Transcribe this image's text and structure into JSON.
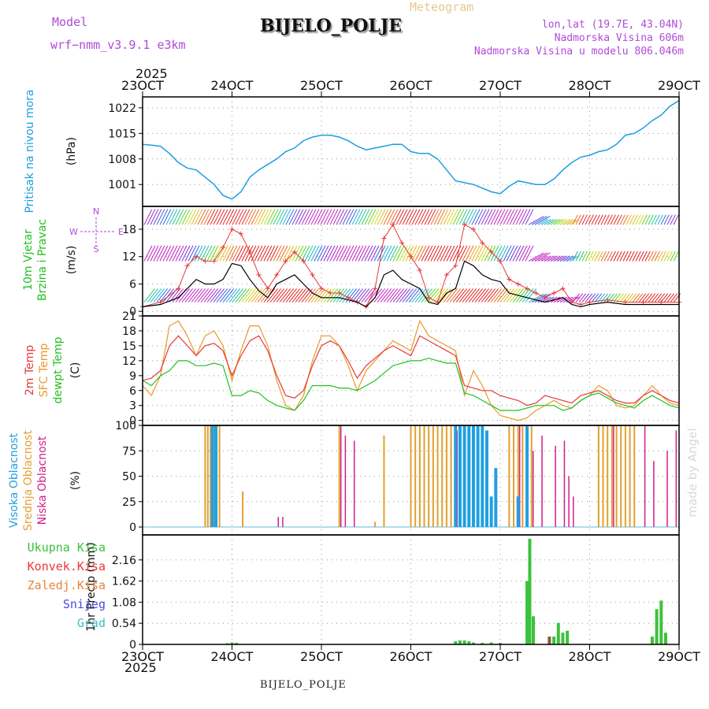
{
  "header": {
    "model_label": "Model",
    "model_name": "wrf−nmm_v3.9.1  e3km",
    "title": "BIJELO_POLJE",
    "meteogram": "Meteogram",
    "coords": "lon,lat (19.7E, 43.04N)",
    "altitude": "Nadmorska Visina 606m",
    "model_altitude": "Nadmorska Visina u modelu 806.046m"
  },
  "footer": {
    "station": "BIJELO_POLJE",
    "watermark": "made by Angel"
  },
  "colors": {
    "pressure": "#1a9fe0",
    "temp2m": "#e83838",
    "sfc": "#e89a28",
    "dewpt": "#22c022",
    "mid_cloud": "#e0a030",
    "low_cloud": "#d0208a",
    "high_cloud": "#20a0e0",
    "wind_speed": "#000000",
    "gust": "#e83838",
    "precip": "#3cc23c",
    "header_text": "#b04ad8"
  },
  "chart_data": {
    "type": "meteogram",
    "x_ticks": [
      "23OCT",
      "24OCT",
      "25OCT",
      "26OCT",
      "27OCT",
      "28OCT",
      "29OCT"
    ],
    "year_top": "2025",
    "year_bottom": "2025",
    "x_range_days": [
      0,
      6
    ],
    "panels": {
      "pressure": {
        "ylabel": "Pritisak na nivou mora",
        "units": "(hPa)",
        "ticks": [
          1001,
          1008,
          1015,
          1022
        ],
        "ylim": [
          995,
          1025
        ],
        "x": [
          0,
          0.1,
          0.2,
          0.3,
          0.4,
          0.5,
          0.6,
          0.7,
          0.8,
          0.9,
          1.0,
          1.1,
          1.2,
          1.3,
          1.4,
          1.5,
          1.6,
          1.7,
          1.8,
          1.9,
          2.0,
          2.1,
          2.2,
          2.3,
          2.4,
          2.5,
          2.6,
          2.7,
          2.8,
          2.9,
          3.0,
          3.1,
          3.2,
          3.3,
          3.4,
          3.5,
          3.6,
          3.7,
          3.8,
          3.9,
          4.0,
          4.1,
          4.2,
          4.3,
          4.4,
          4.5,
          4.6,
          4.7,
          4.8,
          4.9,
          5.0,
          5.1,
          5.2,
          5.3,
          5.4,
          5.5,
          5.6,
          5.7,
          5.8,
          5.9,
          6.0
        ],
        "values": [
          1012,
          1011.8,
          1011.5,
          1009.5,
          1007,
          1005.5,
          1005,
          1003,
          1001,
          998,
          997,
          999,
          1003,
          1005,
          1006.5,
          1008,
          1010,
          1011,
          1013,
          1014,
          1014.5,
          1014.5,
          1014,
          1013,
          1011.5,
          1010.5,
          1011,
          1011.5,
          1012,
          1012,
          1010,
          1009.5,
          1009.5,
          1008,
          1005,
          1002,
          1001.5,
          1001,
          1000,
          999,
          998.5,
          1000.5,
          1002,
          1001.5,
          1001,
          1001,
          1002.5,
          1005,
          1007,
          1008.5,
          1009,
          1010,
          1010.5,
          1012,
          1014.5,
          1015,
          1016.5,
          1018.5,
          1020,
          1022.5,
          1024
        ]
      },
      "wind": {
        "ylabel1": "10m Vjetar",
        "ylabel2": "Brzina i Pravac",
        "units": "(m/s)",
        "ticks": [
          0,
          6,
          12,
          18
        ],
        "ylim": [
          -1,
          23
        ],
        "compass": {
          "n": "N",
          "s": "S",
          "e": "E",
          "w": "W"
        },
        "x": [
          0,
          0.2,
          0.4,
          0.5,
          0.6,
          0.7,
          0.8,
          0.9,
          1.0,
          1.1,
          1.2,
          1.3,
          1.4,
          1.5,
          1.6,
          1.7,
          1.8,
          1.9,
          2.0,
          2.1,
          2.2,
          2.3,
          2.4,
          2.5,
          2.6,
          2.7,
          2.8,
          2.9,
          3.0,
          3.1,
          3.2,
          3.3,
          3.4,
          3.5,
          3.6,
          3.7,
          3.8,
          3.9,
          4.0,
          4.1,
          4.2,
          4.3,
          4.4,
          4.5,
          4.6,
          4.7,
          4.8,
          4.9,
          5.0,
          5.2,
          5.4,
          5.6,
          5.8,
          6.0
        ],
        "speed": [
          1,
          1.5,
          3,
          5,
          7,
          6,
          6,
          7,
          10.5,
          10,
          7,
          4.5,
          3,
          6,
          7,
          8,
          6,
          4,
          3,
          3,
          3,
          2.5,
          2,
          1,
          3,
          8,
          9,
          7,
          6,
          5,
          2,
          1.5,
          4,
          5,
          11,
          10,
          8,
          7,
          6.5,
          4,
          3.5,
          3,
          2.5,
          2,
          2.5,
          3,
          1.5,
          1,
          1.5,
          2,
          1.5,
          1.5,
          1.5,
          1.5
        ],
        "gust": [
          1,
          2,
          5,
          10,
          12,
          11,
          11,
          14,
          18,
          17,
          13,
          8,
          5,
          8,
          11,
          13,
          11,
          8,
          5,
          4,
          4,
          3,
          2,
          1,
          5,
          16,
          19,
          15,
          12,
          9,
          3,
          2,
          8,
          10,
          19,
          18,
          15,
          13,
          11,
          7,
          6,
          5,
          4,
          3,
          4,
          5,
          2,
          1.5,
          2,
          2.5,
          2,
          2,
          2,
          2
        ]
      },
      "temperature": {
        "ylabel1": "2m Temp",
        "ylabel2": "SFC Temp",
        "ylabel3": "dewpt Temp",
        "units": "(C)",
        "ticks": [
          0,
          3,
          6,
          9,
          12,
          15,
          18,
          21
        ],
        "ylim": [
          -1,
          21
        ],
        "x": [
          0,
          0.1,
          0.2,
          0.3,
          0.4,
          0.5,
          0.6,
          0.7,
          0.8,
          0.9,
          1.0,
          1.1,
          1.2,
          1.3,
          1.4,
          1.5,
          1.6,
          1.7,
          1.8,
          1.9,
          2.0,
          2.1,
          2.2,
          2.3,
          2.4,
          2.5,
          2.6,
          2.7,
          2.8,
          2.9,
          3.0,
          3.1,
          3.2,
          3.3,
          3.4,
          3.5,
          3.6,
          3.7,
          3.8,
          3.9,
          4.0,
          4.1,
          4.2,
          4.3,
          4.4,
          4.5,
          4.6,
          4.7,
          4.8,
          4.9,
          5.0,
          5.1,
          5.2,
          5.3,
          5.4,
          5.5,
          5.6,
          5.7,
          5.8,
          5.9,
          6.0
        ],
        "t2m": [
          8,
          8.5,
          10,
          15,
          17,
          15,
          13,
          15,
          15.5,
          14,
          9,
          13,
          16,
          17,
          14,
          9,
          5,
          4.5,
          6,
          11,
          15,
          16,
          15,
          12,
          8.5,
          11,
          12.5,
          14,
          15,
          14,
          13,
          17,
          16,
          15,
          14,
          13,
          7,
          6.5,
          6,
          6,
          5,
          4.5,
          4,
          3,
          3.5,
          5,
          4.5,
          4,
          3.5,
          5,
          5.5,
          6,
          5,
          4,
          3.5,
          3.5,
          5,
          6,
          5,
          4,
          3.5
        ],
        "sfc": [
          7,
          5,
          9,
          19,
          20,
          17,
          13,
          17,
          18,
          15,
          8,
          14,
          19,
          19,
          15,
          8,
          3,
          2,
          5,
          12,
          17,
          17,
          15,
          11,
          6,
          10,
          12,
          14,
          16,
          15,
          14,
          20,
          17,
          16,
          15,
          14,
          5,
          10,
          7,
          3,
          1,
          0.5,
          0,
          0.5,
          2,
          3,
          4,
          3,
          2.5,
          4,
          5,
          7,
          6,
          3,
          2.5,
          3,
          5,
          7,
          5,
          3.5,
          3
        ],
        "dewpt": [
          8,
          7,
          9,
          10,
          12,
          12,
          11,
          11,
          11.5,
          11,
          5,
          5,
          6,
          5.5,
          4,
          3,
          2.5,
          2,
          4,
          7,
          7,
          7,
          6.5,
          6.5,
          6,
          7,
          8,
          9.5,
          11,
          11.5,
          12,
          12,
          12.5,
          12,
          11.5,
          11.5,
          5.5,
          5,
          4,
          3,
          2,
          2,
          2,
          2.5,
          3,
          3,
          3,
          2,
          2.5,
          4,
          5,
          5.5,
          4.5,
          3.5,
          3,
          2.5,
          4,
          5,
          4,
          3,
          2.5
        ]
      },
      "cloud": {
        "ylabel1": "Visoka Oblacnost",
        "ylabel2": "Srednja Oblacnost",
        "ylabel3": "Niska Oblacnost",
        "units": "(%)",
        "ticks": [
          0,
          25,
          50,
          75,
          100
        ],
        "ylim": [
          0,
          100
        ],
        "mid": [
          [
            0.7,
            100
          ],
          [
            0.73,
            100
          ],
          [
            0.76,
            100
          ],
          [
            0.8,
            100
          ],
          [
            0.86,
            100
          ],
          [
            1.12,
            35
          ],
          [
            2.2,
            100
          ],
          [
            2.6,
            5
          ],
          [
            2.7,
            90
          ],
          [
            3.0,
            100
          ],
          [
            3.05,
            100
          ],
          [
            3.1,
            100
          ],
          [
            3.15,
            100
          ],
          [
            3.2,
            100
          ],
          [
            3.25,
            100
          ],
          [
            3.3,
            100
          ],
          [
            3.35,
            100
          ],
          [
            3.4,
            100
          ],
          [
            3.45,
            100
          ],
          [
            4.1,
            100
          ],
          [
            4.15,
            100
          ],
          [
            4.2,
            100
          ],
          [
            4.25,
            100
          ],
          [
            4.3,
            100
          ],
          [
            4.35,
            100
          ],
          [
            5.1,
            100
          ],
          [
            5.15,
            100
          ],
          [
            5.2,
            100
          ],
          [
            5.25,
            100
          ],
          [
            5.3,
            100
          ],
          [
            5.35,
            100
          ],
          [
            5.4,
            100
          ],
          [
            5.45,
            100
          ],
          [
            5.5,
            100
          ]
        ],
        "low": [
          [
            1.5,
            10
          ],
          [
            1.55,
            10
          ],
          [
            2.2,
            100
          ],
          [
            2.25,
            90
          ],
          [
            2.35,
            85
          ],
          [
            3.5,
            95
          ],
          [
            4.2,
            100
          ],
          [
            4.35,
            75
          ],
          [
            4.45,
            90
          ],
          [
            4.6,
            80
          ],
          [
            4.7,
            85
          ],
          [
            4.75,
            50
          ],
          [
            4.8,
            30
          ],
          [
            5.25,
            100
          ],
          [
            5.6,
            100
          ],
          [
            5.7,
            65
          ],
          [
            5.85,
            75
          ],
          [
            5.95,
            95
          ]
        ],
        "high": [
          [
            0.78,
            100
          ],
          [
            0.82,
            100
          ],
          [
            3.5,
            100
          ],
          [
            3.55,
            100
          ],
          [
            3.6,
            100
          ],
          [
            3.65,
            100
          ],
          [
            3.7,
            100
          ],
          [
            3.75,
            100
          ],
          [
            3.8,
            100
          ],
          [
            3.85,
            95
          ],
          [
            3.9,
            30
          ],
          [
            3.95,
            58
          ],
          [
            4.2,
            30
          ],
          [
            4.3,
            100
          ]
        ]
      },
      "precip": {
        "legend": [
          "Ukupna Kisa",
          "Konvek.Kisa",
          "Zaledj.Kisa",
          "Snijeg",
          "Grad"
        ],
        "legend_colors": [
          "#3cc23c",
          "#e83838",
          "#e8843a",
          "#4a4ae0",
          "#40c0c0"
        ],
        "ylabel": "1hr Precip",
        "units": "(mm)",
        "ticks": [
          0,
          0.54,
          1.08,
          1.62,
          2.16
        ],
        "ylim": [
          0,
          2.8
        ],
        "bars": [
          [
            0.95,
            0.03
          ],
          [
            1.0,
            0.05
          ],
          [
            1.05,
            0.04
          ],
          [
            3.5,
            0.08
          ],
          [
            3.55,
            0.1
          ],
          [
            3.6,
            0.1
          ],
          [
            3.65,
            0.08
          ],
          [
            3.7,
            0.05
          ],
          [
            3.8,
            0.04
          ],
          [
            3.9,
            0.05
          ],
          [
            4.0,
            0.04
          ],
          [
            4.3,
            1.62
          ],
          [
            4.33,
            2.7
          ],
          [
            4.37,
            0.72
          ],
          [
            4.6,
            0.2
          ],
          [
            4.65,
            0.55
          ],
          [
            4.7,
            0.3
          ],
          [
            4.75,
            0.35
          ],
          [
            5.7,
            0.2
          ],
          [
            5.75,
            0.9
          ],
          [
            5.8,
            1.12
          ],
          [
            5.85,
            0.3
          ]
        ]
      }
    }
  }
}
